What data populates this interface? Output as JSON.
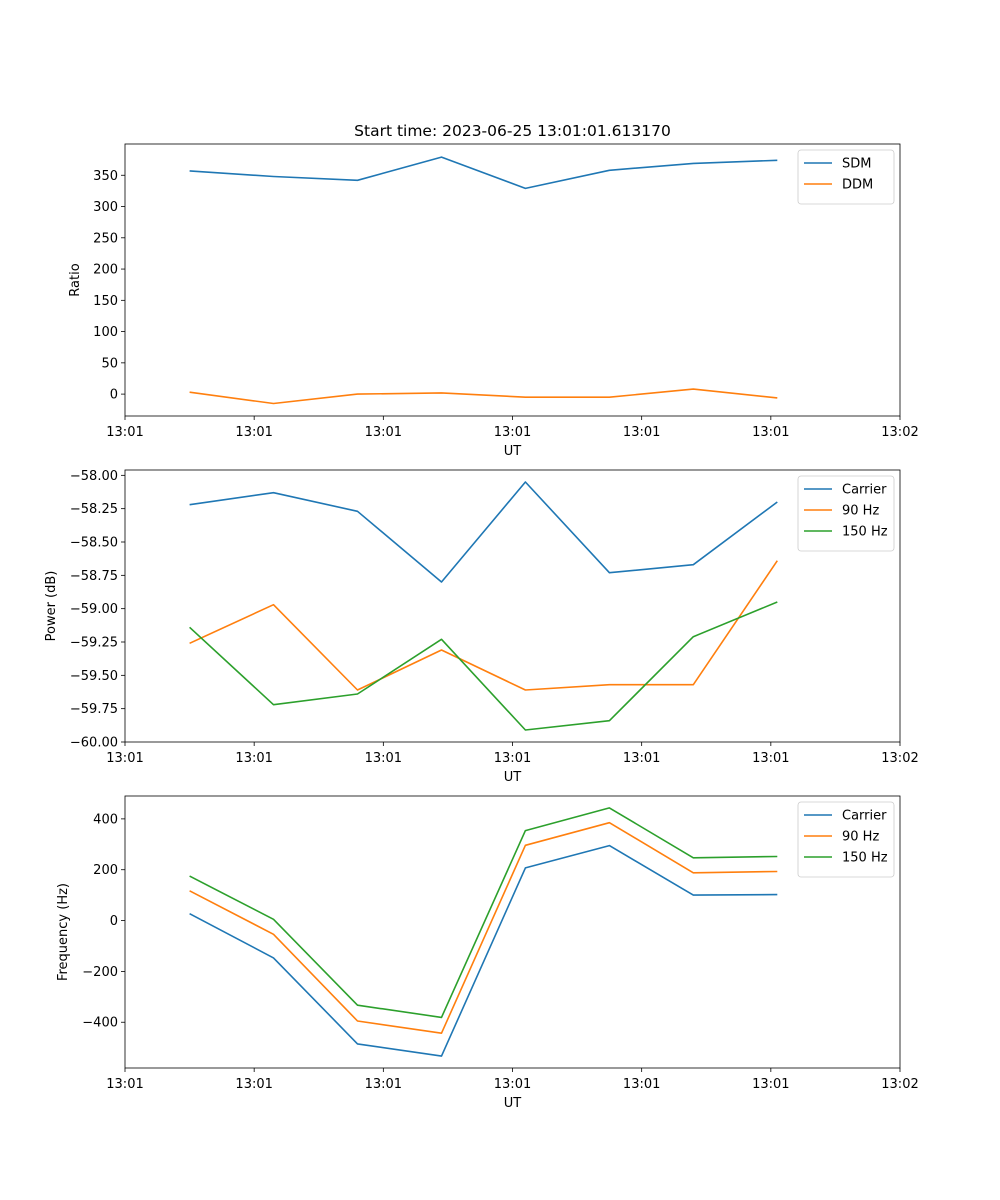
{
  "figure": {
    "title": "Start time: 2023-06-25 13:01:01.613170"
  },
  "chart_data": [
    {
      "type": "line",
      "title": "Start time: 2023-06-25 13:01:01.613170",
      "xlabel": "UT",
      "ylabel": "Ratio",
      "xlim": [
        0,
        12
      ],
      "ylim": [
        -35,
        400
      ],
      "x_ticks": [
        0,
        2,
        4,
        6,
        8,
        10,
        12
      ],
      "x_tick_labels": [
        "13:01",
        "13:01",
        "13:01",
        "13:01",
        "13:01",
        "13:01",
        "13:02"
      ],
      "y_ticks": [
        0,
        50,
        100,
        150,
        200,
        250,
        300,
        350
      ],
      "y_tick_labels": [
        "0",
        "50",
        "100",
        "150",
        "200",
        "250",
        "300",
        "350"
      ],
      "x": [
        1,
        2.3,
        3.6,
        4.9,
        6.2,
        7.5,
        8.8,
        10.1
      ],
      "series": [
        {
          "name": "SDM",
          "color": "#1f77b4",
          "values": [
            357,
            348,
            342,
            379,
            329,
            358,
            369,
            374
          ]
        },
        {
          "name": "DDM",
          "color": "#ff7f0e",
          "values": [
            3,
            -15,
            0,
            2,
            -5,
            -5,
            8,
            -6
          ]
        }
      ],
      "legend": "top-right",
      "grid": false
    },
    {
      "type": "line",
      "title": "",
      "xlabel": "UT",
      "ylabel": "Power (dB)",
      "xlim": [
        0,
        12
      ],
      "ylim": [
        -60.0,
        -57.96
      ],
      "x_ticks": [
        0,
        2,
        4,
        6,
        8,
        10,
        12
      ],
      "x_tick_labels": [
        "13:01",
        "13:01",
        "13:01",
        "13:01",
        "13:01",
        "13:01",
        "13:02"
      ],
      "y_ticks": [
        -60.0,
        -59.75,
        -59.5,
        -59.25,
        -59.0,
        -58.75,
        -58.5,
        -58.25,
        -58.0
      ],
      "y_tick_labels": [
        "−60.00",
        "−59.75",
        "−59.50",
        "−59.25",
        "−59.00",
        "−58.75",
        "−58.50",
        "−58.25",
        "−58.00"
      ],
      "x": [
        1,
        2.3,
        3.6,
        4.9,
        6.2,
        7.5,
        8.8,
        10.1
      ],
      "series": [
        {
          "name": "Carrier",
          "color": "#1f77b4",
          "values": [
            -58.22,
            -58.13,
            -58.27,
            -58.8,
            -58.05,
            -58.73,
            -58.67,
            -58.2
          ]
        },
        {
          "name": "90 Hz",
          "color": "#ff7f0e",
          "values": [
            -59.26,
            -58.97,
            -59.61,
            -59.31,
            -59.61,
            -59.57,
            -59.57,
            -58.64
          ]
        },
        {
          "name": "150 Hz",
          "color": "#2ca02c",
          "values": [
            -59.14,
            -59.72,
            -59.64,
            -59.23,
            -59.91,
            -59.84,
            -59.21,
            -58.95
          ]
        }
      ],
      "legend": "top-right",
      "grid": false
    },
    {
      "type": "line",
      "title": "",
      "xlabel": "UT",
      "ylabel": "Frequency (Hz)",
      "xlim": [
        0,
        12
      ],
      "ylim": [
        -580,
        490
      ],
      "x_ticks": [
        0,
        2,
        4,
        6,
        8,
        10,
        12
      ],
      "x_tick_labels": [
        "13:01",
        "13:01",
        "13:01",
        "13:01",
        "13:01",
        "13:01",
        "13:02"
      ],
      "y_ticks": [
        -400,
        -200,
        0,
        200,
        400
      ],
      "y_tick_labels": [
        "−400",
        "−200",
        "0",
        "200",
        "400"
      ],
      "x": [
        1,
        2.3,
        3.6,
        4.9,
        6.2,
        7.5,
        8.8,
        10.1
      ],
      "series": [
        {
          "name": "Carrier",
          "color": "#1f77b4",
          "values": [
            27,
            -147,
            -485,
            -533,
            207,
            295,
            100,
            102
          ]
        },
        {
          "name": "90 Hz",
          "color": "#ff7f0e",
          "values": [
            117,
            -54,
            -395,
            -443,
            296,
            385,
            188,
            193
          ]
        },
        {
          "name": "150 Hz",
          "color": "#2ca02c",
          "values": [
            175,
            5,
            -333,
            -381,
            354,
            443,
            247,
            252
          ]
        }
      ],
      "legend": "top-right",
      "grid": false
    }
  ]
}
